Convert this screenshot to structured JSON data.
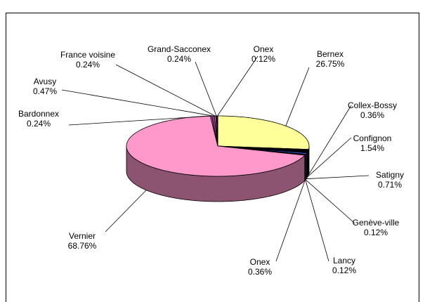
{
  "chart_data": {
    "type": "pie",
    "categories": [
      "Bernex",
      "Collex-Bossy",
      "Confignon",
      "Satigny",
      "Genève-ville",
      "Lancy",
      "Onex",
      "Vernier",
      "Bardonnex",
      "Avusy",
      "France voisine",
      "Grand-Sacconex",
      "Onex"
    ],
    "values": [
      26.75,
      0.36,
      1.54,
      0.71,
      0.12,
      0.12,
      0.36,
      68.76,
      0.24,
      0.47,
      0.24,
      0.24,
      0.12
    ],
    "value_labels": [
      "26.75%",
      "0.36%",
      "1.54%",
      "0.71%",
      "0.12%",
      "0.12%",
      "0.36%",
      "68.76%",
      "0.24%",
      "0.47%",
      "0.24%",
      "0.24%",
      "0.12%"
    ],
    "colors": [
      "#ffff99",
      "#339966",
      "#000000",
      "#3366ff",
      "#ffcc00",
      "#00ccff",
      "#ff6600",
      "#ff99cc",
      "#9999ff",
      "#993366",
      "#cc99ff",
      "#660066",
      "#ff8080"
    ]
  }
}
